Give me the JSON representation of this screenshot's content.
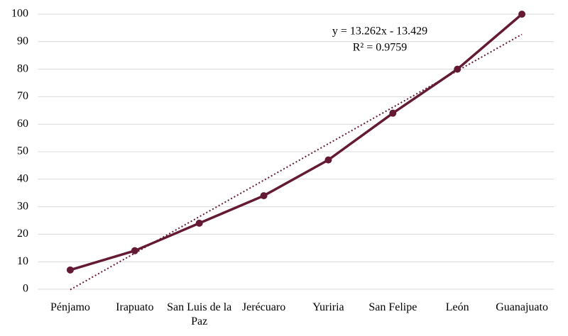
{
  "chart_data": {
    "type": "line",
    "categories": [
      "Pénjamo",
      "Irapuato",
      "San Luis de la Paz",
      "Jerécuaro",
      "Yuriria",
      "San Felipe",
      "León",
      "Guanajuato"
    ],
    "series": [
      {
        "color": "#641a34",
        "values": [
          7,
          14,
          24,
          34,
          47,
          64,
          80,
          100
        ]
      }
    ],
    "trendline": {
      "label": "y = 13.262x - 13.429",
      "r2_label": "R² = 0.9759",
      "slope": 13.262,
      "intercept": -13.429,
      "color": "#641a34"
    },
    "ylim": [
      0,
      100
    ],
    "yticks": [
      0,
      10,
      20,
      30,
      40,
      50,
      60,
      70,
      80,
      90,
      100
    ],
    "grid": true
  }
}
